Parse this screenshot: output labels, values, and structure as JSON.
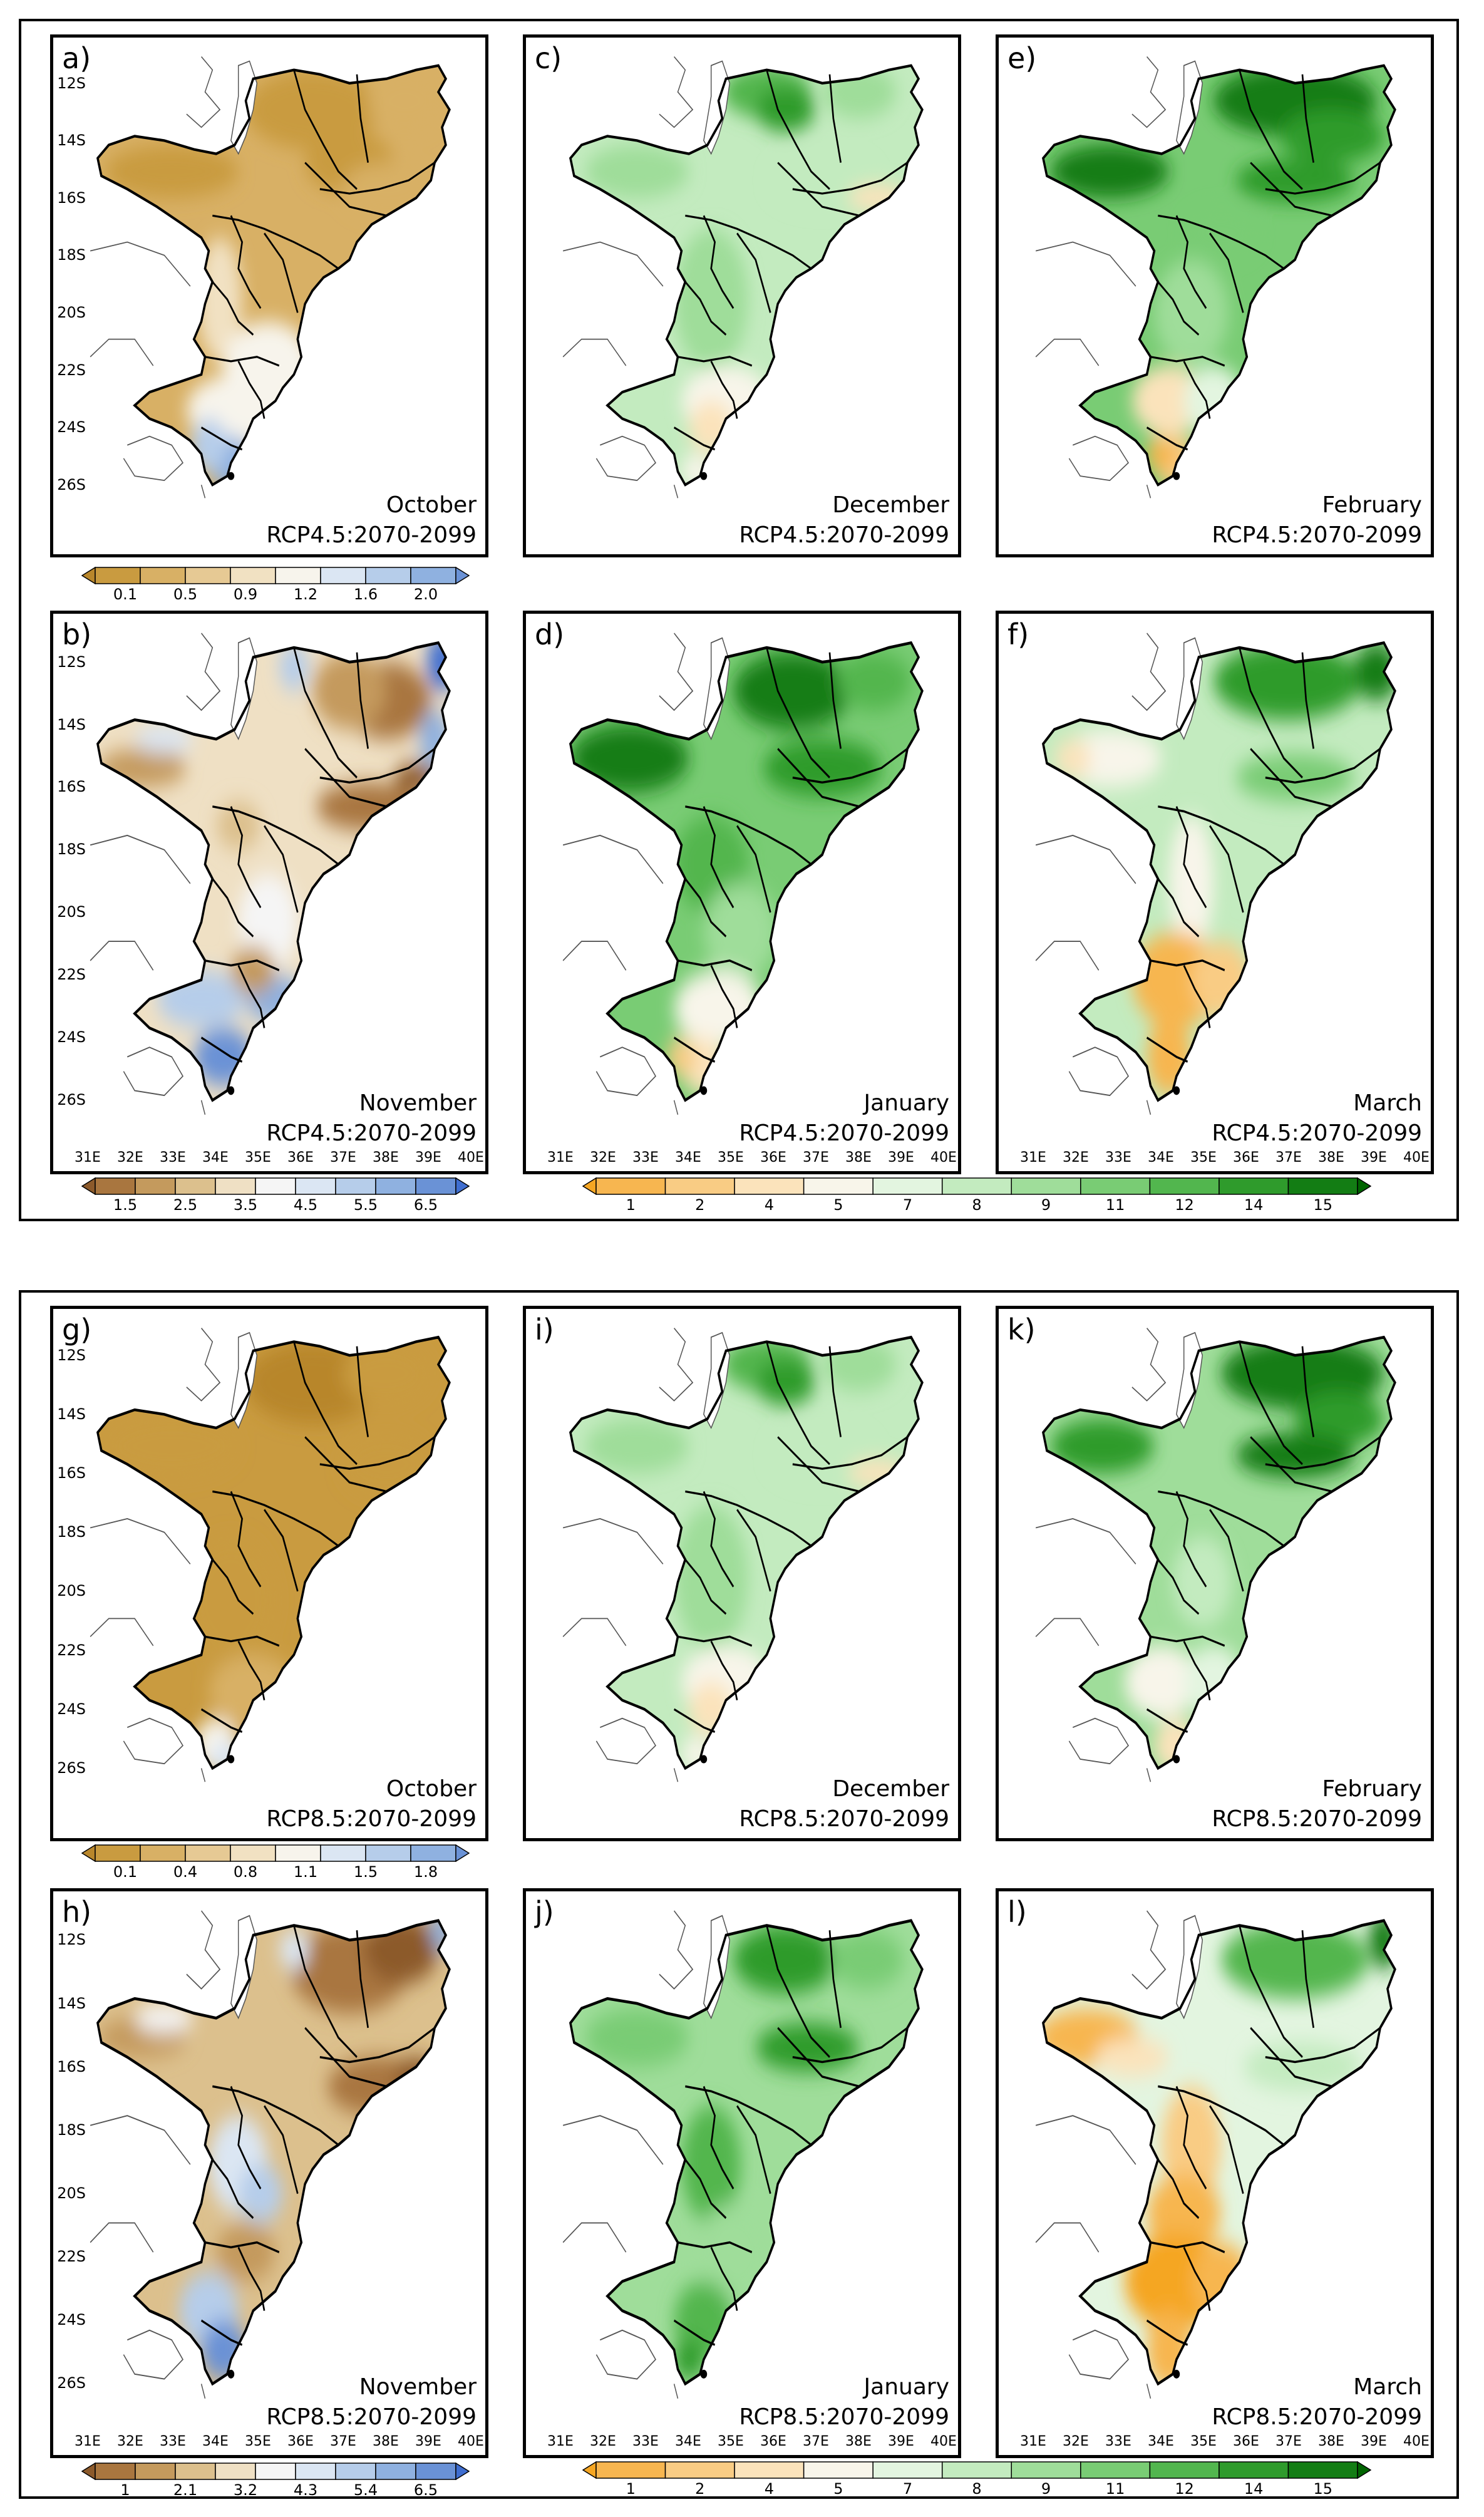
{
  "colors": {
    "brown_scale": [
      "#8c5a2b",
      "#a9763f",
      "#c49a5d",
      "#dcc08d",
      "#efe0c4",
      "#f5f5f5",
      "#dbe6f3",
      "#b6cdea",
      "#8fb1e0",
      "#6a92d6",
      "#3f6ed0"
    ],
    "gold_scale": [
      "#b8862b",
      "#c99b40",
      "#d8b065",
      "#e6c994",
      "#f1e1c2",
      "#f7f4ec",
      "#dbe6f3",
      "#b6cdea",
      "#8fb1e0",
      "#6a92d6"
    ],
    "green_scale": [
      "#f5a623",
      "#f7b650",
      "#f9cc84",
      "#fbe3bb",
      "#f8f5ea",
      "#e3f5e0",
      "#c3ebbf",
      "#9fdd9a",
      "#79cc74",
      "#52b64e",
      "#2f9b2c",
      "#137d14",
      "#006400"
    ],
    "outline": "#000000",
    "neighbor": "#555555"
  },
  "panels": [
    {
      "id": "a",
      "letter": "a)",
      "month": "October",
      "scenario": "RCP4.5:2070-2099",
      "scale": "gold",
      "pattern": "dry_oct",
      "show_lat": true,
      "show_lon": false
    },
    {
      "id": "c",
      "letter": "c)",
      "month": "December",
      "scenario": "RCP4.5:2070-2099",
      "scale": "green",
      "pattern": "mid",
      "show_lat": false,
      "show_lon": false
    },
    {
      "id": "e",
      "letter": "e)",
      "month": "February",
      "scenario": "RCP4.5:2070-2099",
      "scale": "green",
      "pattern": "wet_north",
      "show_lat": false,
      "show_lon": false
    },
    {
      "id": "b",
      "letter": "b)",
      "month": "November",
      "scenario": "RCP4.5:2070-2099",
      "scale": "brown",
      "pattern": "nov",
      "show_lat": true,
      "show_lon": true
    },
    {
      "id": "d",
      "letter": "d)",
      "month": "January",
      "scenario": "RCP4.5:2070-2099",
      "scale": "green",
      "pattern": "wet_all",
      "show_lat": false,
      "show_lon": true
    },
    {
      "id": "f",
      "letter": "f)",
      "month": "March",
      "scenario": "RCP4.5:2070-2099",
      "scale": "green",
      "pattern": "dry_south",
      "show_lat": false,
      "show_lon": true
    },
    {
      "id": "g",
      "letter": "g)",
      "month": "October",
      "scenario": "RCP8.5:2070-2099",
      "scale": "gold",
      "pattern": "dry_oct85",
      "show_lat": true,
      "show_lon": false
    },
    {
      "id": "i",
      "letter": "i)",
      "month": "December",
      "scenario": "RCP8.5:2070-2099",
      "scale": "green",
      "pattern": "mid",
      "show_lat": false,
      "show_lon": false
    },
    {
      "id": "k",
      "letter": "k)",
      "month": "February",
      "scenario": "RCP8.5:2070-2099",
      "scale": "green",
      "pattern": "wet_north_k",
      "show_lat": false,
      "show_lon": false
    },
    {
      "id": "h",
      "letter": "h)",
      "month": "November",
      "scenario": "RCP8.5:2070-2099",
      "scale": "brown",
      "pattern": "nov85",
      "show_lat": true,
      "show_lon": true
    },
    {
      "id": "j",
      "letter": "j)",
      "month": "January",
      "scenario": "RCP8.5:2070-2099",
      "scale": "green",
      "pattern": "wet_j",
      "show_lat": false,
      "show_lon": true
    },
    {
      "id": "l",
      "letter": "l)",
      "month": "March",
      "scenario": "RCP8.5:2070-2099",
      "scale": "green",
      "pattern": "dry_south_l",
      "show_lat": false,
      "show_lon": true
    }
  ],
  "lat_labels": [
    "12S",
    "14S",
    "16S",
    "18S",
    "20S",
    "22S",
    "24S",
    "26S"
  ],
  "lon_labels": [
    "31E",
    "32E",
    "33E",
    "34E",
    "35E",
    "36E",
    "37E",
    "38E",
    "39E",
    "40E"
  ],
  "colorbars": {
    "oct45": {
      "scale": "gold",
      "labels": [
        "0.1",
        "0.5",
        "0.9",
        "1.2",
        "1.6",
        "2.0"
      ]
    },
    "nov45": {
      "scale": "brown",
      "labels": [
        "1.5",
        "2.5",
        "3.5",
        "4.5",
        "5.5",
        "6.5"
      ]
    },
    "green_top": {
      "scale": "green",
      "labels": [
        "1",
        "2",
        "4",
        "5",
        "7",
        "8",
        "9",
        "11",
        "12",
        "14",
        "15"
      ]
    },
    "oct85": {
      "scale": "gold",
      "labels": [
        "0.1",
        "0.4",
        "0.8",
        "1.1",
        "1.5",
        "1.8"
      ]
    },
    "nov85": {
      "scale": "brown",
      "labels": [
        "1",
        "2.1",
        "3.2",
        "4.3",
        "5.4",
        "6.5"
      ]
    },
    "green_bottom": {
      "scale": "green",
      "labels": [
        "1",
        "2",
        "4",
        "5",
        "7",
        "8",
        "9",
        "11",
        "12",
        "14",
        "15"
      ]
    }
  }
}
